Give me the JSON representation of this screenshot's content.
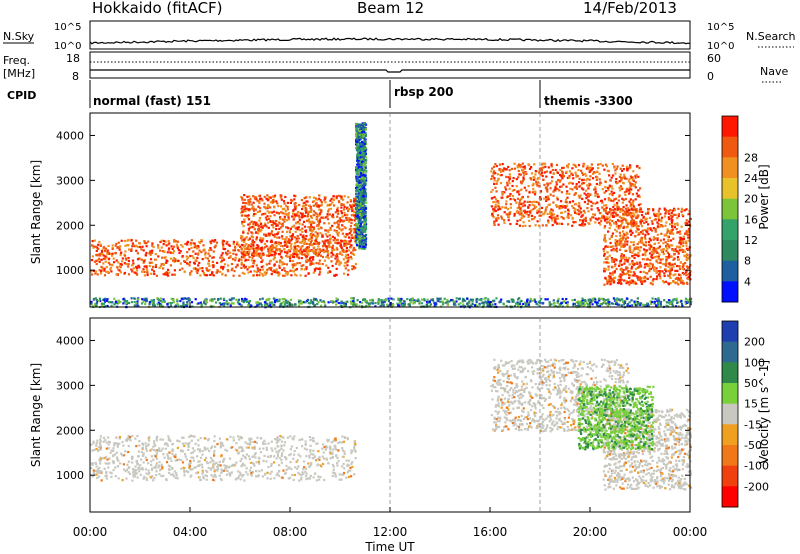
{
  "header": {
    "station": "Hokkaido (fitACF)",
    "beam": "Beam 12",
    "date": "14/Feb/2013"
  },
  "top_strip": {
    "nsky_label": "N.Sky",
    "nsearch_label": "N.Search",
    "noise_ticks_left": [
      "10^5",
      "10^0"
    ],
    "noise_ticks_right": [
      "10^5",
      "10^0"
    ],
    "freq_label": "Freq.",
    "freq_unit": "[MHz]",
    "freq_ticks": [
      "18",
      "8"
    ],
    "nave_label": "Nave",
    "nave_ticks": [
      "60",
      "0"
    ],
    "cpid_label": "CPID",
    "cpid_segments": [
      {
        "label": "normal (fast) 151",
        "start_hour": 0
      },
      {
        "label": "rbsp 200",
        "start_hour": 12
      },
      {
        "label": "themis -3300",
        "start_hour": 18
      }
    ]
  },
  "chart_data": [
    {
      "type": "heatmap",
      "panel": "power",
      "ylabel": "Slant Range [km]",
      "y_ticks": [
        "1000",
        "2000",
        "3000",
        "4000"
      ],
      "ylim": [
        180,
        4500
      ],
      "xlim_hours": [
        0,
        24
      ],
      "colorbar": {
        "label": "Power [dB]",
        "ticks": [
          "4",
          "8",
          "12",
          "16",
          "20",
          "24",
          "28"
        ],
        "colors": [
          "#0010ff",
          "#1e5fa0",
          "#2e8a5e",
          "#34a36a",
          "#7cc43a",
          "#e8c22a",
          "#f09020",
          "#f05a10",
          "#ff1800"
        ]
      },
      "regions": [
        {
          "hours": [
            0.0,
            10.6
          ],
          "range_km": [
            900,
            1700
          ],
          "level": "strong"
        },
        {
          "hours": [
            6.0,
            10.6
          ],
          "range_km": [
            1300,
            2700
          ],
          "level": "strong"
        },
        {
          "hours": [
            10.6,
            11.0
          ],
          "range_km": [
            1500,
            4300
          ],
          "level": "weak"
        },
        {
          "hours": [
            16.0,
            22.0
          ],
          "range_km": [
            2000,
            3400
          ],
          "level": "strong"
        },
        {
          "hours": [
            20.5,
            24.0
          ],
          "range_km": [
            700,
            2400
          ],
          "level": "strong"
        },
        {
          "hours": [
            0.0,
            24.0
          ],
          "range_km": [
            200,
            400
          ],
          "level": "weak"
        }
      ]
    },
    {
      "type": "heatmap",
      "panel": "velocity",
      "ylabel": "Slant Range [km]",
      "y_ticks": [
        "1000",
        "2000",
        "3000",
        "4000"
      ],
      "ylim": [
        180,
        4500
      ],
      "xlim_hours": [
        0,
        24
      ],
      "colorbar": {
        "label": "Velocity [m s^-1]",
        "ticks": [
          "200",
          "100",
          "50",
          "15",
          "-15",
          "-50",
          "-100",
          "-200"
        ],
        "colors": [
          "#1f3fb0",
          "#2e6a90",
          "#2f8a4a",
          "#7ad03a",
          "#c8c8c0",
          "#f0a020",
          "#f07818",
          "#f04010",
          "#ff0000"
        ]
      },
      "regions": [
        {
          "hours": [
            0.0,
            10.6
          ],
          "range_km": [
            900,
            1900
          ],
          "level": "ground-scatter"
        },
        {
          "hours": [
            16.0,
            21.5
          ],
          "range_km": [
            2000,
            3600
          ],
          "level": "ground-scatter"
        },
        {
          "hours": [
            20.5,
            24.0
          ],
          "range_km": [
            700,
            2500
          ],
          "level": "ground-scatter"
        },
        {
          "hours": [
            19.5,
            22.5
          ],
          "range_km": [
            1600,
            3000
          ],
          "level": "positive-green"
        }
      ]
    }
  ],
  "x_axis": {
    "ticks": [
      "00:00",
      "04:00",
      "08:00",
      "12:00",
      "16:00",
      "20:00",
      "00:00"
    ],
    "label": "Time UT"
  },
  "colors": {
    "ground_scatter": "#c8c8c0",
    "strong_power": "#ff1800",
    "green": "#7ad03a",
    "orange": "#f09020",
    "blue": "#1f3fb0"
  }
}
